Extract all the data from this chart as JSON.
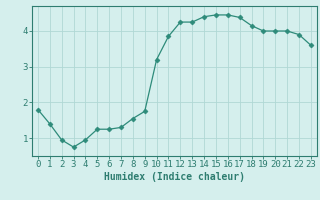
{
  "x": [
    0,
    1,
    2,
    3,
    4,
    5,
    6,
    7,
    8,
    9,
    10,
    11,
    12,
    13,
    14,
    15,
    16,
    17,
    18,
    19,
    20,
    21,
    22,
    23
  ],
  "y": [
    1.8,
    1.4,
    0.95,
    0.75,
    0.95,
    1.25,
    1.25,
    1.3,
    1.55,
    1.75,
    3.2,
    3.85,
    4.25,
    4.25,
    4.4,
    4.45,
    4.45,
    4.38,
    4.15,
    4.0,
    4.0,
    4.0,
    3.9,
    3.6
  ],
  "line_color": "#2e8b7a",
  "marker": "D",
  "marker_size": 2.5,
  "bg_color": "#d5efed",
  "grid_color": "#b0d8d5",
  "axis_color": "#2e7d70",
  "xlabel": "Humidex (Indice chaleur)",
  "ylabel": "",
  "xlim": [
    -0.5,
    23.5
  ],
  "ylim": [
    0.5,
    4.7
  ],
  "yticks": [
    1,
    2,
    3,
    4
  ],
  "xtick_labels": [
    "0",
    "1",
    "2",
    "3",
    "4",
    "5",
    "6",
    "7",
    "8",
    "9",
    "10",
    "11",
    "12",
    "13",
    "14",
    "15",
    "16",
    "17",
    "18",
    "19",
    "20",
    "21",
    "22",
    "23"
  ],
  "xlabel_fontsize": 7,
  "tick_fontsize": 6.5
}
